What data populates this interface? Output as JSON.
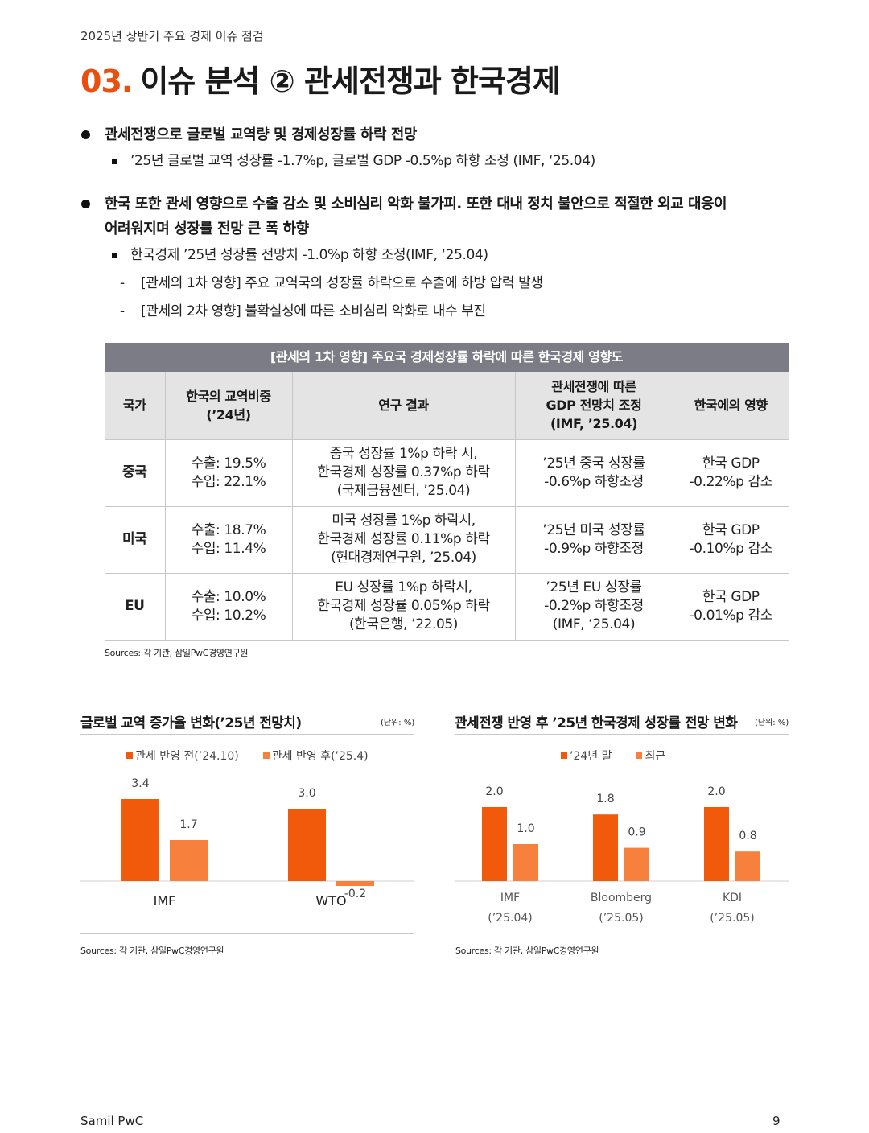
{
  "header": {
    "subtitle": "2025년 상반기 주요 경제 이슈 점검"
  },
  "title": {
    "number": "03.",
    "text": "이슈 분석 ② 관세전쟁과 한국경제"
  },
  "bullets": {
    "b1": "관세전쟁으로 글로벌 교역량 및 경제성장률 하락 전망",
    "b1_sub": "’25년 글로벌 교역 성장률 -1.7%p, 글로벌 GDP -0.5%p 하향 조정 (IMF, ‘25.04)",
    "b2_line1": "한국 또한 관세 영향으로 수출 감소 및 소비심리 악화 불가피. 또한 대내 정치 불안으로 적절한 외교 대응이",
    "b2_line2": "어려워지며 성장률 전망 큰 폭 하향",
    "b2_sub": "한국경제 ’25년 성장률 전망치 -1.0%p 하향 조정(IMF, ‘25.04)",
    "b2_dash1": "[관세의 1차 영향] 주요 교역국의 성장률 하락으로 수출에 하방 압력 발생",
    "b2_dash2": "[관세의 2차 영향] 불확실성에 따른 소비심리 악화로 내수 부진"
  },
  "table": {
    "title": "[관세의 1차 영향] 주요국 경제성장률 하락에 따른 한국경제 영향도",
    "headers": {
      "country": "국가",
      "share_l1": "한국의 교역비중",
      "share_l2": "(’24년)",
      "research": "연구 결과",
      "gdp_l1": "관세전쟁에 따른",
      "gdp_l2": "GDP 전망치 조정",
      "gdp_l3": "(IMF, ’25.04)",
      "impact": "한국에의 영향"
    },
    "rows": [
      {
        "country": "중국",
        "share": [
          "수출: 19.5%",
          "수입: 22.1%"
        ],
        "research": [
          "중국 성장률 1%p 하락 시,",
          "한국경제 성장률 0.37%p 하락",
          "(국제금융센터, ’25.04)"
        ],
        "gdp": [
          "’25년 중국 성장률",
          "-0.6%p 하향조정"
        ],
        "impact": [
          "한국 GDP",
          "-0.22%p 감소"
        ]
      },
      {
        "country": "미국",
        "share": [
          "수출: 18.7%",
          "수입: 11.4%"
        ],
        "research": [
          "미국 성장률 1%p 하락시,",
          "한국경제 성장률 0.11%p 하락",
          "(현대경제연구원, ’25.04)"
        ],
        "gdp": [
          "’25년 미국 성장률",
          "-0.9%p 하향조정"
        ],
        "impact": [
          "한국 GDP",
          "-0.10%p 감소"
        ]
      },
      {
        "country": "EU",
        "share": [
          "수출: 10.0%",
          "수입: 10.2%"
        ],
        "research": [
          "EU 성장률 1%p 하락시,",
          "한국경제 성장률 0.05%p 하락",
          "(한국은행, ’22.05)"
        ],
        "gdp": [
          "’25년 EU 성장률",
          "-0.2%p 하향조정",
          "(IMF, ‘25.04)"
        ],
        "impact": [
          "한국 GDP",
          "-0.01%p 감소"
        ]
      }
    ],
    "source": "Sources: 각 기관, 삼일PwC경영연구원"
  },
  "colors": {
    "dark_orange": "#f05a0a",
    "light_orange": "#f7803d",
    "accent": "#e8500f"
  },
  "chart_data": [
    {
      "type": "bar",
      "title": "글로벌 교역 증가율 변화(’25년 전망치)",
      "unit": "(단위: %)",
      "categories": [
        "IMF",
        "WTO"
      ],
      "series": [
        {
          "name": "관세 반영 전(’24.10)",
          "values": [
            3.4,
            3.0
          ],
          "color": "#f05a0a"
        },
        {
          "name": "관세 반영 후(’25.4)",
          "values": [
            1.7,
            -0.2
          ],
          "color": "#f7803d"
        }
      ],
      "value_labels": [
        [
          "3.4",
          "3.0"
        ],
        [
          "1.7",
          "-0.2"
        ]
      ],
      "legend": "top-center",
      "grid": false,
      "source": "Sources: 각 기관, 삼일PwC경영연구원"
    },
    {
      "type": "bar",
      "title": "관세전쟁 반영 후 ’25년 한국경제 성장률 전망 변화",
      "unit": "(단위: %)",
      "categories": [
        "IMF",
        "Bloomberg",
        "KDI"
      ],
      "category_sublabels": [
        "(’25.04)",
        "(’25.05)",
        "(’25.05)"
      ],
      "series": [
        {
          "name": "’24년 말",
          "values": [
            2.0,
            1.8,
            2.0
          ],
          "color": "#f05a0a"
        },
        {
          "name": "최근",
          "values": [
            1.0,
            0.9,
            0.8
          ],
          "color": "#f7803d"
        }
      ],
      "value_labels": [
        [
          "2.0",
          "1.8",
          "2.0"
        ],
        [
          "1.0",
          "0.9",
          "0.8"
        ]
      ],
      "legend": "top-center",
      "grid": false,
      "source": "Sources: 각 기관, 삼일PwC경영연구원"
    }
  ],
  "footer": {
    "left": "Samil PwC",
    "page": "9"
  }
}
